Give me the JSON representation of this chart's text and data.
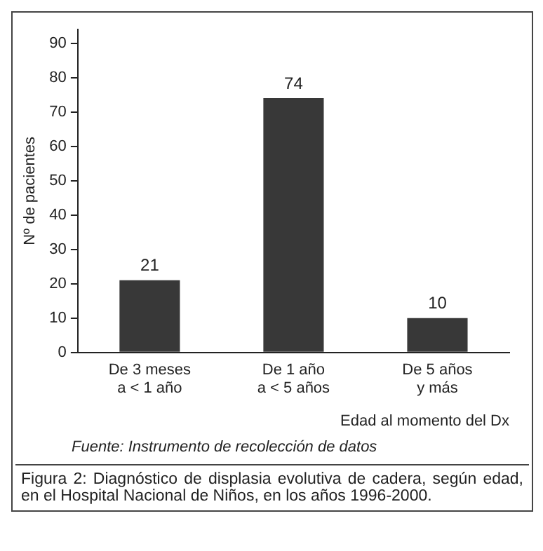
{
  "chart_data": {
    "type": "bar",
    "categories": [
      "De 3 meses\na < 1 año",
      "De 1 año\na < 5 años",
      "De 5 años\ny más"
    ],
    "values": [
      21,
      74,
      10
    ],
    "color": "#383838",
    "data_labels": true,
    "ylabel": "Nº de pacientes",
    "xlabel": "Edad al momento del Dx",
    "ylim": [
      0,
      94
    ],
    "yticks": [
      0,
      10,
      20,
      30,
      40,
      50,
      60,
      70,
      80,
      90
    ],
    "grid": false,
    "legend": false,
    "annotations": [
      "Fuente: Instrumento de recolección de datos",
      "Figura 2: Diagnóstico de displasia evolutiva de cadera, según edad, en el Hospital Nacional de Niños, en los años 1996-2000."
    ]
  }
}
